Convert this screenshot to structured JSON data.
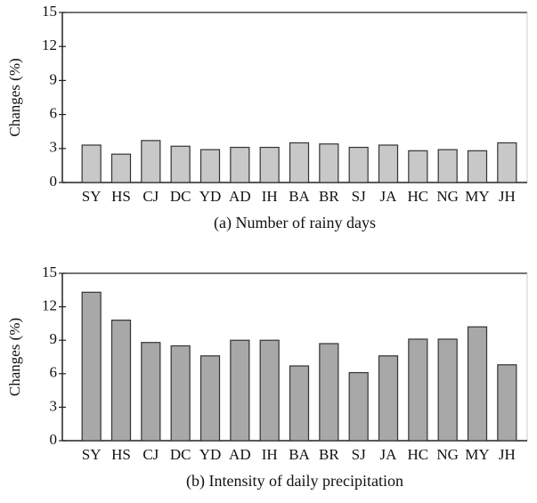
{
  "chart_data": [
    {
      "type": "bar",
      "title": "(a) Number of rainy days",
      "ylabel": "Changes (%)",
      "categories": [
        "SY",
        "HS",
        "CJ",
        "DC",
        "YD",
        "AD",
        "IH",
        "BA",
        "BR",
        "SJ",
        "JA",
        "HC",
        "NG",
        "MY",
        "JH"
      ],
      "values": [
        3.3,
        2.5,
        3.7,
        3.2,
        2.9,
        3.1,
        3.1,
        3.5,
        3.4,
        3.1,
        3.3,
        2.8,
        2.9,
        2.8,
        3.5
      ],
      "color": "#c8c8c8",
      "ylim": [
        0,
        15
      ],
      "yticks": [
        0,
        3,
        6,
        9,
        12,
        15
      ]
    },
    {
      "type": "bar",
      "title": "(b) Intensity of daily precipitation",
      "ylabel": "Changes (%)",
      "categories": [
        "SY",
        "HS",
        "CJ",
        "DC",
        "YD",
        "AD",
        "IH",
        "BA",
        "BR",
        "SJ",
        "JA",
        "HC",
        "NG",
        "MY",
        "JH"
      ],
      "values": [
        13.3,
        10.8,
        8.8,
        8.5,
        7.6,
        9.0,
        9.0,
        6.7,
        8.7,
        6.1,
        7.6,
        9.1,
        9.1,
        10.2,
        6.8
      ],
      "color": "#a8a8a8",
      "ylim": [
        0,
        15
      ],
      "yticks": [
        0,
        3,
        6,
        9,
        12,
        15
      ]
    }
  ]
}
